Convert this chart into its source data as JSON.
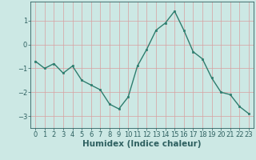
{
  "title": "",
  "xlabel": "Humidex (Indice chaleur)",
  "x": [
    0,
    1,
    2,
    3,
    4,
    5,
    6,
    7,
    8,
    9,
    10,
    11,
    12,
    13,
    14,
    15,
    16,
    17,
    18,
    19,
    20,
    21,
    22,
    23
  ],
  "y": [
    -0.7,
    -1.0,
    -0.8,
    -1.2,
    -0.9,
    -1.5,
    -1.7,
    -1.9,
    -2.5,
    -2.7,
    -2.2,
    -0.9,
    -0.2,
    0.6,
    0.9,
    1.4,
    0.6,
    -0.3,
    -0.6,
    -1.4,
    -2.0,
    -2.1,
    -2.6,
    -2.9
  ],
  "line_color": "#2e7d6e",
  "marker_color": "#2e7d6e",
  "bg_color": "#cce8e4",
  "grid_color": "#d8a0a0",
  "axis_color": "#2e6060",
  "ylim": [
    -3.5,
    1.8
  ],
  "yticks": [
    -3,
    -2,
    -1,
    0,
    1
  ],
  "xticks": [
    0,
    1,
    2,
    3,
    4,
    5,
    6,
    7,
    8,
    9,
    10,
    11,
    12,
    13,
    14,
    15,
    16,
    17,
    18,
    19,
    20,
    21,
    22,
    23
  ],
  "tick_fontsize": 6,
  "label_fontsize": 7.5
}
